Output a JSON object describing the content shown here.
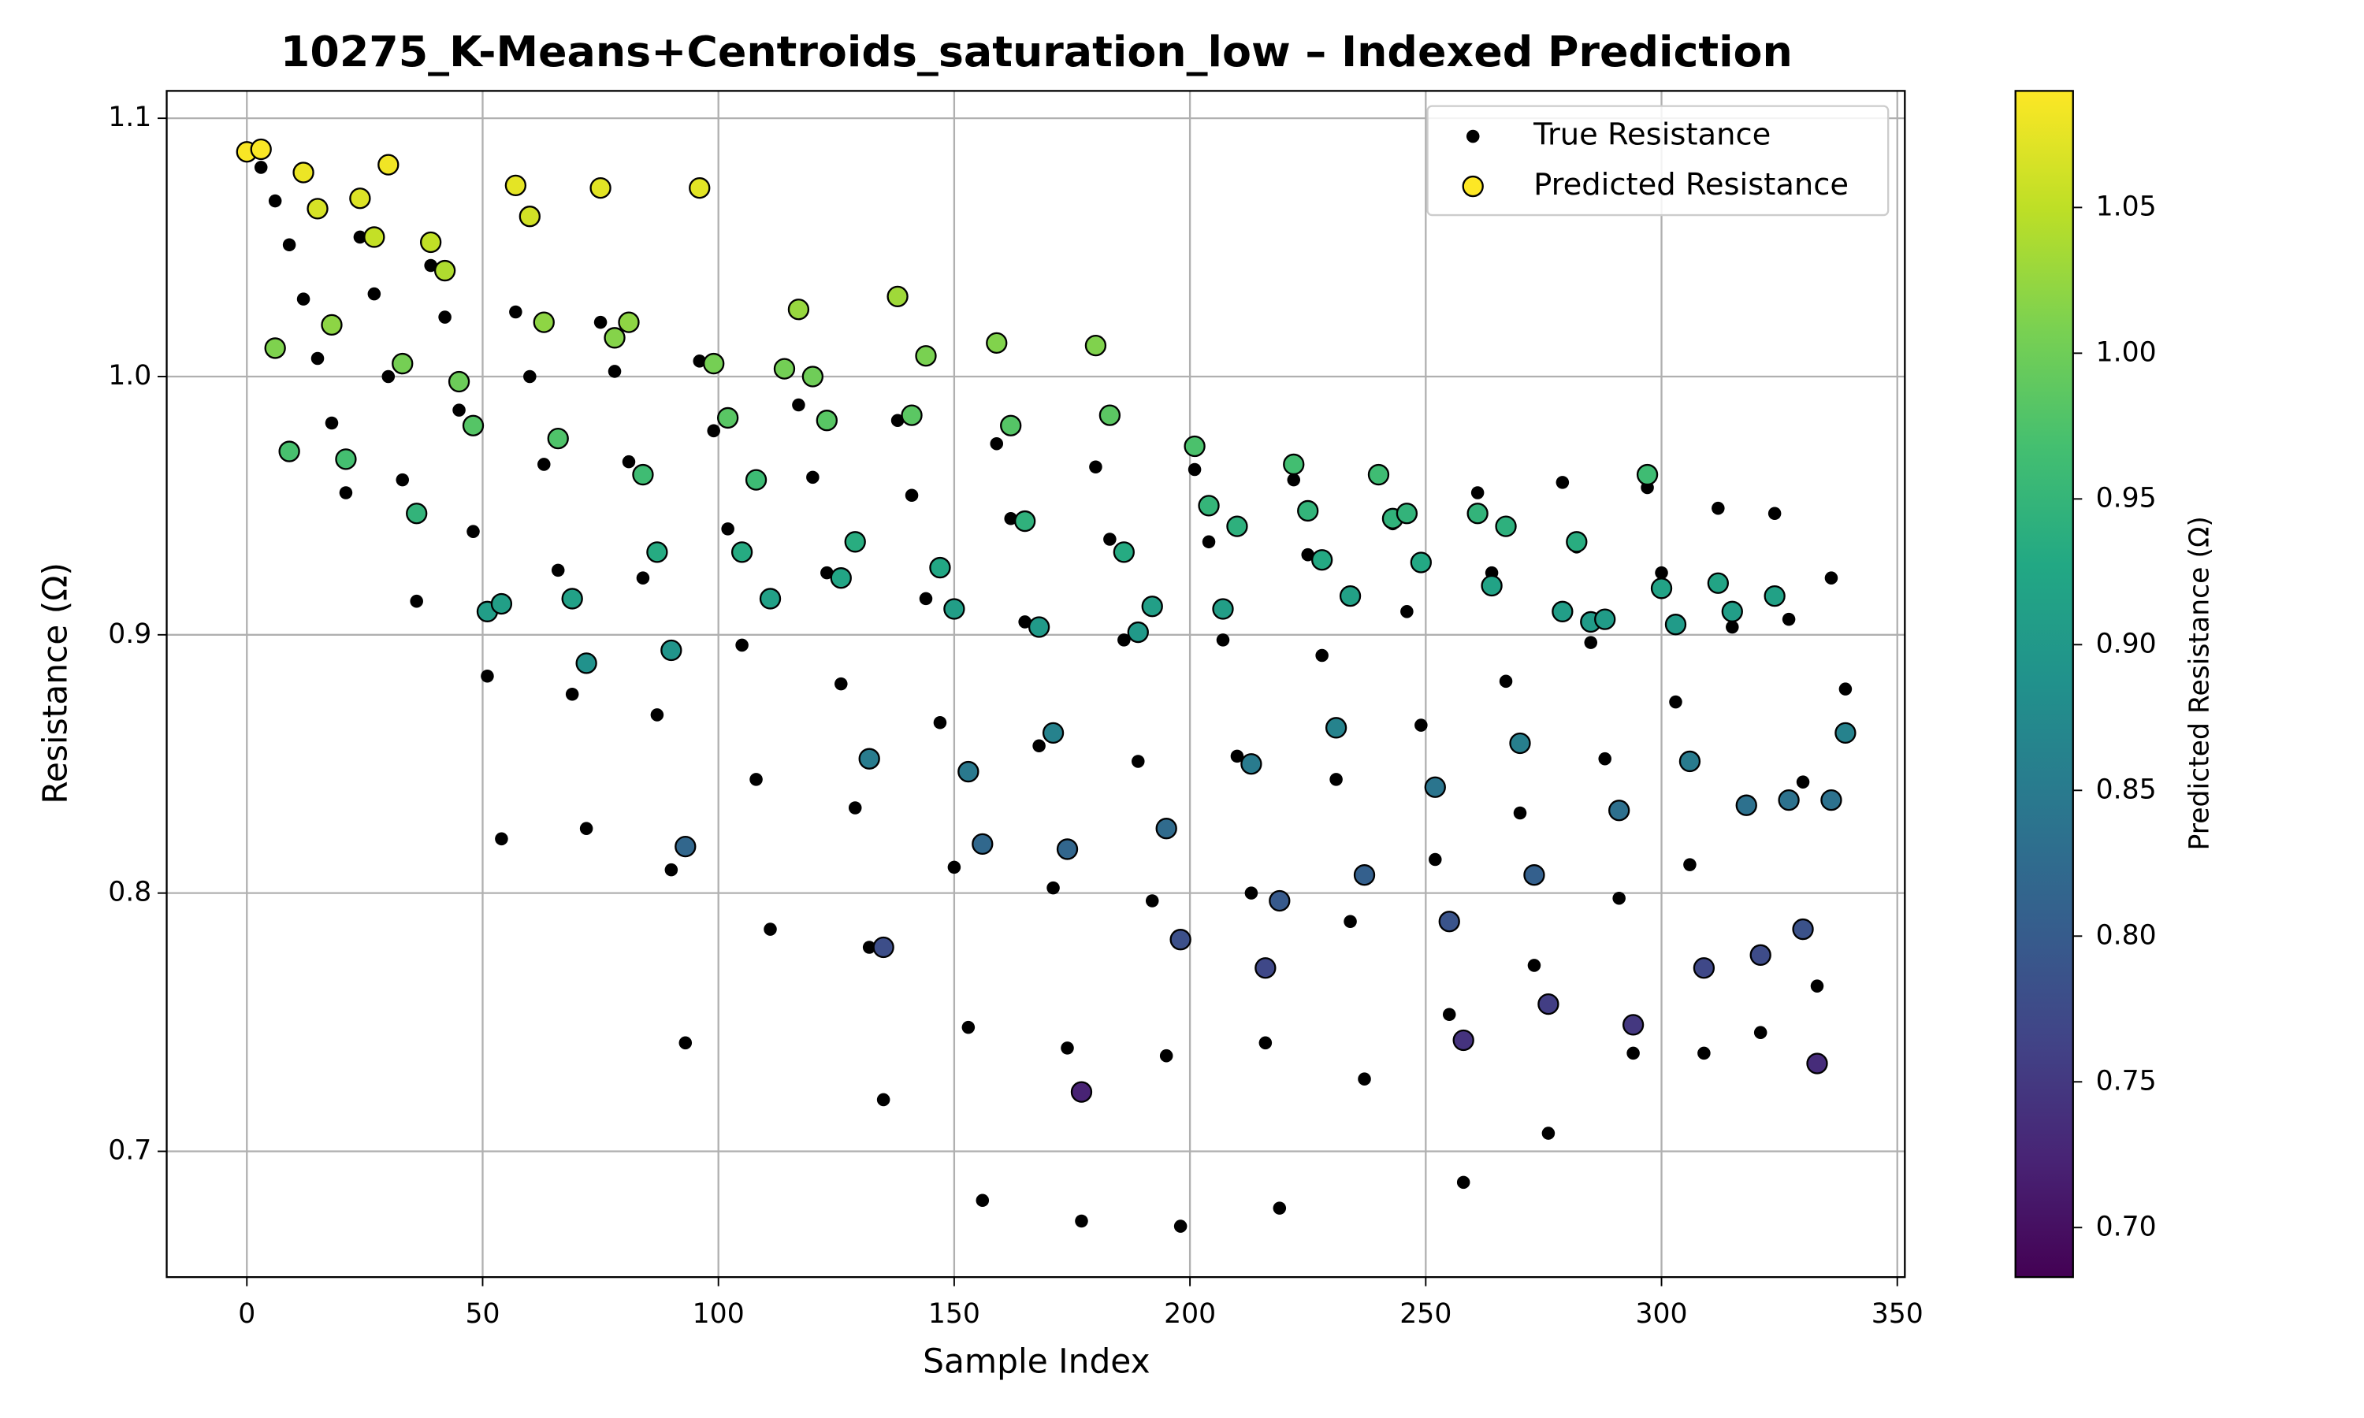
{
  "chart_data": {
    "type": "scatter",
    "title": "10275_K-Means+Centroids_saturation_low – Indexed Prediction",
    "x_label": "Sample Index",
    "y_label": "Resistance (Ω)",
    "x": [
      0,
      3,
      6,
      9,
      12,
      15,
      18,
      21,
      24,
      27,
      30,
      33,
      36,
      39,
      42,
      45,
      48,
      51,
      54,
      57,
      60,
      63,
      66,
      69,
      72,
      75,
      78,
      81,
      84,
      87,
      90,
      93,
      96,
      99,
      102,
      105,
      108,
      111,
      114,
      117,
      120,
      123,
      126,
      129,
      132,
      135,
      138,
      141,
      144,
      147,
      150,
      153,
      156,
      159,
      162,
      165,
      168,
      171,
      174,
      177,
      180,
      183,
      186,
      189,
      192,
      195,
      198,
      201,
      204,
      207,
      210,
      213,
      216,
      219,
      222,
      225,
      228,
      231,
      234,
      237,
      240,
      243,
      246,
      249,
      252,
      255,
      258,
      261,
      264,
      267,
      270,
      273,
      276,
      279,
      282,
      285,
      288,
      291,
      294,
      297,
      300,
      303,
      306,
      309,
      312,
      315,
      318,
      321,
      324,
      327,
      330,
      333,
      336,
      339
    ],
    "series": [
      {
        "name": "True Resistance",
        "color": "#000000",
        "values": [
          1.088,
          1.081,
          1.068,
          1.051,
          1.03,
          1.007,
          0.982,
          0.955,
          1.054,
          1.032,
          1.0,
          0.96,
          0.913,
          1.043,
          1.023,
          0.987,
          0.94,
          0.884,
          0.821,
          1.025,
          1.0,
          0.966,
          0.925,
          0.877,
          0.825,
          1.021,
          1.002,
          0.967,
          0.922,
          0.869,
          0.809,
          0.742,
          1.006,
          0.979,
          0.941,
          0.896,
          0.844,
          0.786,
          1.004,
          0.989,
          0.961,
          0.924,
          0.881,
          0.833,
          0.779,
          0.72,
          0.983,
          0.954,
          0.914,
          0.866,
          0.81,
          0.748,
          0.681,
          0.974,
          0.945,
          0.905,
          0.857,
          0.802,
          0.74,
          0.673,
          0.965,
          0.937,
          0.898,
          0.851,
          0.797,
          0.737,
          0.671,
          0.964,
          0.936,
          0.898,
          0.853,
          0.8,
          0.742,
          0.678,
          0.96,
          0.931,
          0.892,
          0.844,
          0.789,
          0.728,
          0.962,
          0.943,
          0.909,
          0.865,
          0.813,
          0.753,
          0.688,
          0.955,
          0.924,
          0.882,
          0.831,
          0.772,
          0.707,
          0.959,
          0.934,
          0.897,
          0.852,
          0.798,
          0.738,
          0.957,
          0.924,
          0.874,
          0.811,
          0.738,
          0.949,
          0.903,
          0.833,
          0.746,
          0.947,
          0.906,
          0.843,
          0.764,
          0.922,
          0.879
        ]
      },
      {
        "name": "Predicted Resistance",
        "colormap": "viridis",
        "values": [
          1.087,
          1.088,
          1.011,
          0.971,
          1.079,
          1.065,
          1.02,
          0.968,
          1.069,
          1.054,
          1.082,
          1.005,
          0.947,
          1.052,
          1.041,
          0.998,
          0.981,
          0.909,
          0.912,
          1.074,
          1.062,
          1.021,
          0.976,
          0.914,
          0.889,
          1.073,
          1.015,
          1.021,
          0.962,
          0.932,
          0.894,
          0.818,
          1.073,
          1.005,
          0.984,
          0.932,
          0.96,
          0.914,
          1.003,
          1.026,
          1.0,
          0.983,
          0.922,
          0.936,
          0.852,
          0.779,
          1.031,
          0.985,
          1.008,
          0.926,
          0.91,
          0.847,
          0.819,
          1.013,
          0.981,
          0.944,
          0.903,
          0.862,
          0.817,
          0.723,
          1.012,
          0.985,
          0.932,
          0.901,
          0.911,
          0.825,
          0.782,
          0.973,
          0.95,
          0.91,
          0.942,
          0.85,
          0.771,
          0.797,
          0.966,
          0.948,
          0.929,
          0.864,
          0.915,
          0.807,
          0.962,
          0.945,
          0.947,
          0.928,
          0.841,
          0.789,
          0.743,
          0.947,
          0.919,
          0.942,
          0.858,
          0.807,
          0.757,
          0.909,
          0.936,
          0.905,
          0.906,
          0.832,
          0.749,
          0.962,
          0.918,
          0.904,
          0.851,
          0.771,
          0.92,
          0.909,
          0.834,
          0.776,
          0.915,
          0.836,
          0.786,
          0.734,
          0.836,
          0.862
        ]
      }
    ],
    "xlim": [
      -17.0,
      351.6
    ],
    "xticks": [
      0,
      50,
      100,
      150,
      200,
      250,
      300,
      350
    ],
    "ylim": [
      0.6513,
      1.1106
    ],
    "yticks": [
      {
        "value": 0.7,
        "label": "0.7"
      },
      {
        "value": 0.8,
        "label": "0.8"
      },
      {
        "value": 0.9,
        "label": "0.9"
      },
      {
        "value": 1.0,
        "label": "1.0"
      },
      {
        "value": 1.1,
        "label": "1.1"
      }
    ],
    "grid": true,
    "legend": "upper right",
    "colorbar_label": "Predicted Resistance (Ω)",
    "clim": [
      0.683,
      1.09
    ],
    "cticks": [
      {
        "value": 0.7,
        "label": "0.70"
      },
      {
        "value": 0.75,
        "label": "0.75"
      },
      {
        "value": 0.8,
        "label": "0.80"
      },
      {
        "value": 0.85,
        "label": "0.85"
      },
      {
        "value": 0.9,
        "label": "0.90"
      },
      {
        "value": 0.95,
        "label": "0.95"
      },
      {
        "value": 1.0,
        "label": "1.00"
      },
      {
        "value": 1.05,
        "label": "1.05"
      }
    ]
  }
}
